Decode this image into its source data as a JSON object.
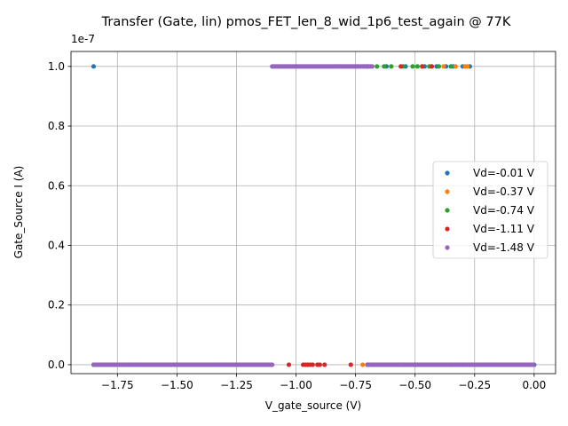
{
  "chart_data": {
    "type": "scatter",
    "title": "Transfer (Gate, lin) pmos_FET_len_8_wid_1p6_test_again @ 77K",
    "xlabel": "V_gate_source (V)",
    "ylabel": "Gate_Source I (A)",
    "y_offset_label": "1e-7",
    "xlim": [
      -1.945,
      0.09
    ],
    "ylim": [
      -3e-09,
      1.05e-07
    ],
    "xticks": [
      -1.75,
      -1.5,
      -1.25,
      -1.0,
      -0.75,
      -0.5,
      -0.25,
      0.0
    ],
    "xtick_labels": [
      "−1.75",
      "−1.50",
      "−1.25",
      "−1.00",
      "−0.75",
      "−0.50",
      "−0.25",
      "0.00"
    ],
    "yticks": [
      0.0,
      2e-08,
      4e-08,
      6e-08,
      8e-08,
      1e-07
    ],
    "ytick_labels": [
      "0.0",
      "0.2",
      "0.4",
      "0.6",
      "0.8",
      "1.0"
    ],
    "grid": true,
    "legend_position": "center-right",
    "series": [
      {
        "name": "Vd=-0.01 V",
        "color": "#1f77b4",
        "points": [
          [
            -1.85,
            1e-07
          ],
          [
            -0.3,
            1e-07
          ],
          [
            -0.27,
            1e-07
          ],
          [
            -0.34,
            1e-07
          ],
          [
            -0.41,
            1e-07
          ],
          [
            -0.46,
            1e-07
          ],
          [
            -0.54,
            1e-07
          ],
          [
            -0.62,
            1e-07
          ],
          [
            -0.37,
            1e-07
          ],
          [
            -1.85,
            0
          ],
          [
            -1.7,
            0
          ],
          [
            -1.5,
            0
          ],
          [
            -1.3,
            0
          ],
          [
            -1.12,
            0
          ],
          [
            -0.7,
            0
          ],
          [
            -0.5,
            0
          ],
          [
            -0.3,
            0
          ],
          [
            -0.1,
            0
          ],
          [
            0.0,
            0
          ]
        ]
      },
      {
        "name": "Vd=-0.37 V",
        "color": "#ff7f0e",
        "points": [
          [
            -0.28,
            1e-07
          ],
          [
            -0.29,
            1e-07
          ],
          [
            -0.38,
            1e-07
          ],
          [
            -0.43,
            1e-07
          ],
          [
            -0.47,
            1e-07
          ],
          [
            -0.33,
            1e-07
          ],
          [
            -0.72,
            0
          ],
          [
            -0.6,
            0
          ],
          [
            -0.45,
            0
          ],
          [
            -0.25,
            0
          ],
          [
            -0.05,
            0
          ]
        ]
      },
      {
        "name": "Vd=-0.74 V",
        "color": "#2ca02c",
        "points": [
          [
            -0.35,
            1e-07
          ],
          [
            -0.4,
            1e-07
          ],
          [
            -0.44,
            1e-07
          ],
          [
            -0.49,
            1e-07
          ],
          [
            -0.51,
            1e-07
          ],
          [
            -0.55,
            1e-07
          ],
          [
            -0.6,
            1e-07
          ],
          [
            -0.63,
            1e-07
          ],
          [
            -0.66,
            1e-07
          ],
          [
            -0.7,
            0
          ],
          [
            -0.55,
            0
          ],
          [
            -0.35,
            0
          ],
          [
            -0.15,
            0
          ]
        ]
      },
      {
        "name": "Vd=-1.11 V",
        "color": "#d62728",
        "points": [
          [
            -0.43,
            1e-07
          ],
          [
            -0.47,
            1e-07
          ],
          [
            -0.7,
            1e-07
          ],
          [
            -0.56,
            1e-07
          ],
          [
            -1.03,
            0
          ],
          [
            -0.97,
            0
          ],
          [
            -0.96,
            0
          ],
          [
            -0.95,
            0
          ],
          [
            -0.94,
            0
          ],
          [
            -0.93,
            0
          ],
          [
            -0.91,
            0
          ],
          [
            -0.9,
            0
          ],
          [
            -0.88,
            0
          ],
          [
            -0.77,
            0
          ],
          [
            -0.68,
            0
          ],
          [
            -0.66,
            0
          ],
          [
            -0.63,
            0
          ],
          [
            -0.57,
            0
          ]
        ]
      },
      {
        "name": "Vd=-1.48 V",
        "color": "#9467bd",
        "dense_ranges": [
          {
            "x_from": -1.1,
            "x_to": -0.68,
            "y": 1e-07
          },
          {
            "x_from": -1.85,
            "x_to": -1.1,
            "y": 0
          },
          {
            "x_from": -0.7,
            "x_to": 0.0,
            "y": 0
          }
        ]
      }
    ]
  }
}
